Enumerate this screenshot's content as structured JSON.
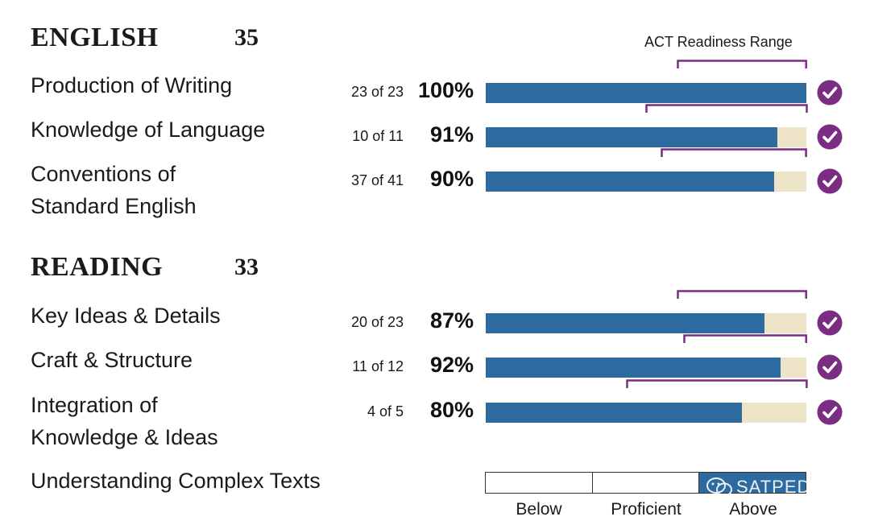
{
  "readiness_label": "ACT Readiness Range",
  "watermark": "SATPEDIA",
  "colors": {
    "bar_fill": "#2c6aa0",
    "bar_track": "#ede3c6",
    "range_bracket": "#7b2d84",
    "check_circle": "#7b2d84"
  },
  "chart_data": [
    {
      "type": "bar",
      "title": "ENGLISH",
      "score": "35",
      "xlim": [
        0,
        100
      ],
      "categories": [
        "Production of Writing",
        "Knowledge of Language",
        "Conventions of Standard English"
      ],
      "category_lines": [
        [
          "Production of Writing"
        ],
        [
          "Knowledge of Language"
        ],
        [
          "Conventions of",
          "Standard English"
        ]
      ],
      "counts": [
        "23 of 23",
        "10 of 11",
        "37 of 41"
      ],
      "percent_labels": [
        "100%",
        "91%",
        "90%"
      ],
      "values": [
        100,
        91,
        90
      ],
      "readiness_range": [
        [
          60,
          100
        ],
        [
          50,
          100
        ],
        [
          55,
          100
        ]
      ],
      "met_readiness": [
        true,
        true,
        true
      ]
    },
    {
      "type": "bar",
      "title": "READING",
      "score": "33",
      "xlim": [
        0,
        100
      ],
      "categories": [
        "Key Ideas & Details",
        "Craft & Structure",
        "Integration of Knowledge & Ideas"
      ],
      "category_lines": [
        [
          "Key Ideas & Details"
        ],
        [
          "Craft & Structure"
        ],
        [
          "Integration of",
          "Knowledge & Ideas"
        ]
      ],
      "counts": [
        "20 of 23",
        "11 of 12",
        "4 of 5"
      ],
      "percent_labels": [
        "87%",
        "92%",
        "80%"
      ],
      "values": [
        87,
        92,
        80
      ],
      "readiness_range": [
        [
          60,
          100
        ],
        [
          62,
          100
        ],
        [
          44,
          100
        ]
      ],
      "met_readiness": [
        true,
        true,
        true
      ]
    }
  ],
  "understanding_complex_texts": {
    "label": "Understanding Complex Texts",
    "levels": [
      "Below",
      "Proficient",
      "Above"
    ],
    "selected_level": "Above"
  }
}
